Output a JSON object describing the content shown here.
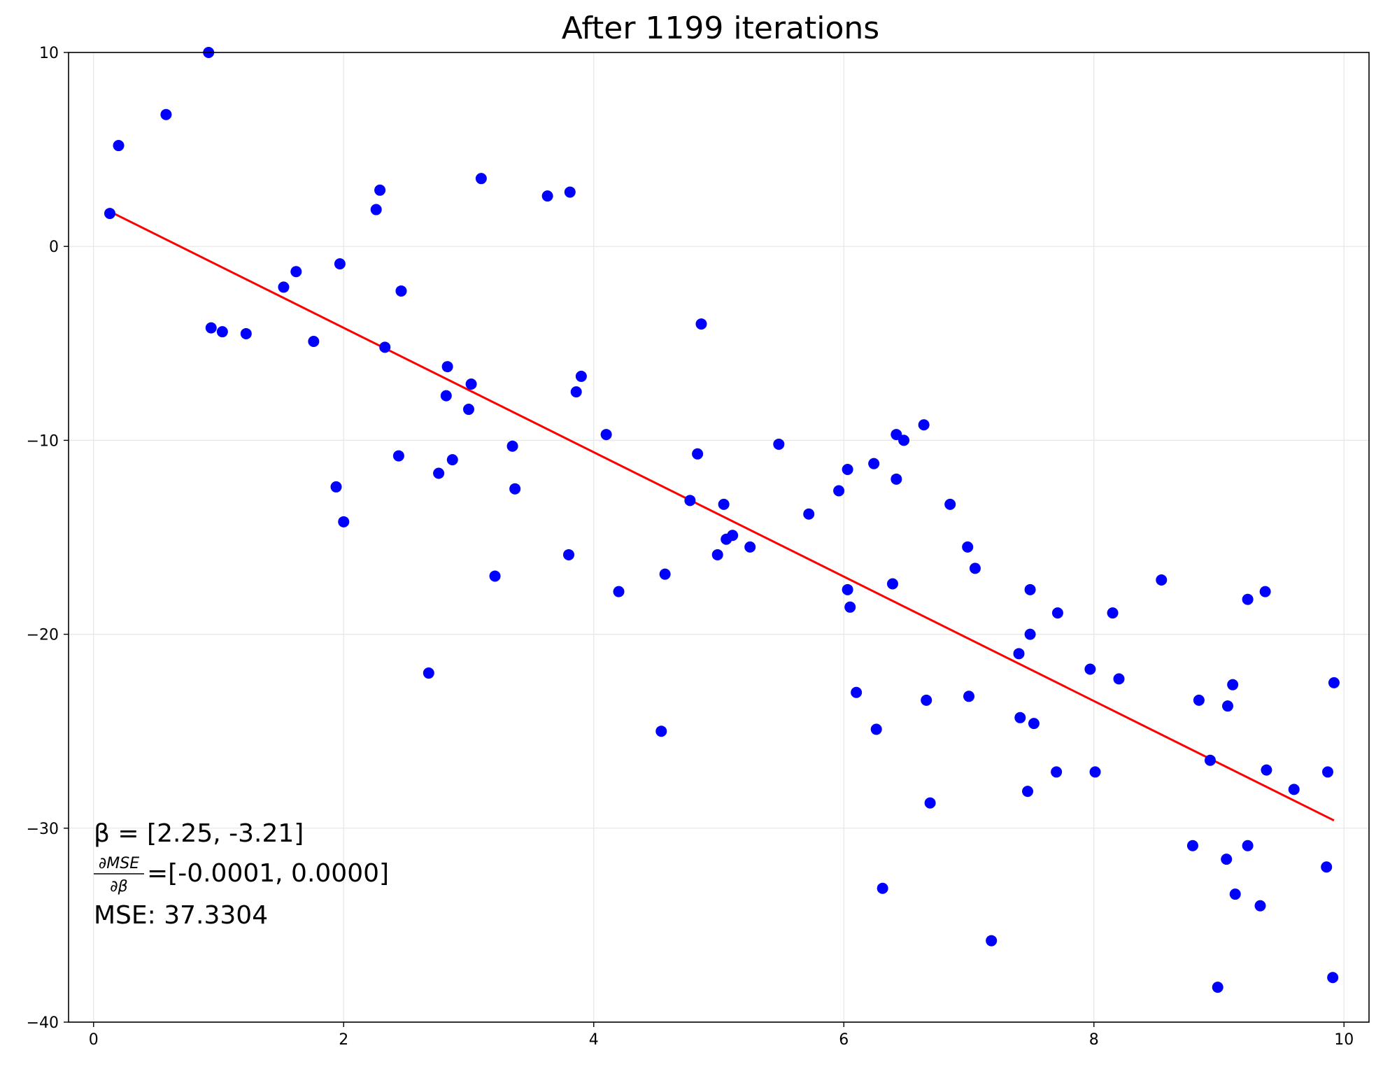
{
  "chart_data": {
    "type": "scatter",
    "title": "After 1199 iterations",
    "xlabel": "",
    "ylabel": "",
    "xlim": [
      -0.2,
      10.2
    ],
    "ylim": [
      -40,
      10
    ],
    "x_ticks": [
      0,
      2,
      4,
      6,
      8,
      10
    ],
    "y_ticks": [
      -40,
      -30,
      -20,
      -10,
      0,
      10
    ],
    "x_tick_labels": [
      "0",
      "2",
      "4",
      "6",
      "8",
      "10"
    ],
    "y_tick_labels": [
      "−40",
      "−30",
      "−20",
      "−10",
      "0",
      "10"
    ],
    "grid": true,
    "colors": {
      "points": "#0000ff",
      "fit_line": "#ff0000",
      "grid": "#e6e6e6"
    },
    "series": [
      {
        "type": "scatter",
        "points": [
          [
            0.13,
            1.7
          ],
          [
            0.2,
            5.2
          ],
          [
            0.58,
            6.8
          ],
          [
            0.92,
            10.0
          ],
          [
            0.94,
            -4.2
          ],
          [
            1.03,
            -4.4
          ],
          [
            1.22,
            -4.5
          ],
          [
            1.52,
            -2.1
          ],
          [
            1.62,
            -1.3
          ],
          [
            1.76,
            -4.9
          ],
          [
            1.94,
            -12.4
          ],
          [
            1.97,
            -0.9
          ],
          [
            2.0,
            -14.2
          ],
          [
            2.26,
            1.9
          ],
          [
            2.29,
            2.9
          ],
          [
            2.33,
            -5.2
          ],
          [
            2.44,
            -10.8
          ],
          [
            2.46,
            -2.3
          ],
          [
            2.68,
            -22.0
          ],
          [
            2.76,
            -11.7
          ],
          [
            2.82,
            -7.7
          ],
          [
            2.83,
            -6.2
          ],
          [
            2.87,
            -11.0
          ],
          [
            3.0,
            -8.4
          ],
          [
            3.02,
            -7.1
          ],
          [
            3.1,
            3.5
          ],
          [
            3.21,
            -17.0
          ],
          [
            3.35,
            -10.3
          ],
          [
            3.37,
            -12.5
          ],
          [
            3.63,
            2.6
          ],
          [
            3.8,
            -15.9
          ],
          [
            3.81,
            2.8
          ],
          [
            3.86,
            -7.5
          ],
          [
            3.9,
            -6.7
          ],
          [
            4.1,
            -9.7
          ],
          [
            4.2,
            -17.8
          ],
          [
            4.54,
            -25.0
          ],
          [
            4.57,
            -16.9
          ],
          [
            4.77,
            -13.1
          ],
          [
            4.83,
            -10.7
          ],
          [
            4.86,
            -4.0
          ],
          [
            4.99,
            -15.9
          ],
          [
            5.04,
            -13.3
          ],
          [
            5.06,
            -15.1
          ],
          [
            5.11,
            -14.9
          ],
          [
            5.25,
            -15.5
          ],
          [
            5.48,
            -10.2
          ],
          [
            5.72,
            -13.8
          ],
          [
            5.96,
            -12.6
          ],
          [
            6.03,
            -11.5
          ],
          [
            6.03,
            -17.7
          ],
          [
            6.05,
            -18.6
          ],
          [
            6.1,
            -23.0
          ],
          [
            6.24,
            -11.2
          ],
          [
            6.26,
            -24.9
          ],
          [
            6.31,
            -33.1
          ],
          [
            6.39,
            -17.4
          ],
          [
            6.42,
            -9.7
          ],
          [
            6.42,
            -12.0
          ],
          [
            6.48,
            -10.0
          ],
          [
            6.64,
            -9.2
          ],
          [
            6.66,
            -23.4
          ],
          [
            6.69,
            -28.7
          ],
          [
            6.85,
            -13.3
          ],
          [
            6.99,
            -15.5
          ],
          [
            7.0,
            -23.2
          ],
          [
            7.05,
            -16.6
          ],
          [
            7.18,
            -35.8
          ],
          [
            7.4,
            -21.0
          ],
          [
            7.41,
            -24.3
          ],
          [
            7.47,
            -28.1
          ],
          [
            7.49,
            -20.0
          ],
          [
            7.49,
            -17.7
          ],
          [
            7.52,
            -24.6
          ],
          [
            7.7,
            -27.1
          ],
          [
            7.71,
            -18.9
          ],
          [
            7.97,
            -21.8
          ],
          [
            8.01,
            -27.1
          ],
          [
            8.15,
            -18.9
          ],
          [
            8.2,
            -22.3
          ],
          [
            8.54,
            -17.2
          ],
          [
            8.79,
            -30.9
          ],
          [
            8.84,
            -23.4
          ],
          [
            8.93,
            -26.5
          ],
          [
            8.99,
            -38.2
          ],
          [
            9.06,
            -31.6
          ],
          [
            9.07,
            -23.7
          ],
          [
            9.11,
            -22.6
          ],
          [
            9.13,
            -33.4
          ],
          [
            9.23,
            -18.2
          ],
          [
            9.23,
            -30.9
          ],
          [
            9.33,
            -34.0
          ],
          [
            9.37,
            -17.8
          ],
          [
            9.38,
            -27.0
          ],
          [
            9.6,
            -28.0
          ],
          [
            9.86,
            -32.0
          ],
          [
            9.87,
            -27.1
          ],
          [
            9.91,
            -37.7
          ],
          [
            9.92,
            -22.5
          ]
        ]
      },
      {
        "type": "line",
        "points": [
          [
            0.13,
            1.8
          ],
          [
            9.92,
            -29.6
          ]
        ]
      }
    ],
    "annotations": {
      "beta_line": "β = [2.25, -3.21]",
      "gradient_numerator": "∂MSE",
      "gradient_denominator": "∂β",
      "gradient_values": "=[-0.0001, 0.0000]",
      "mse_line": "MSE: 37.3304"
    }
  }
}
